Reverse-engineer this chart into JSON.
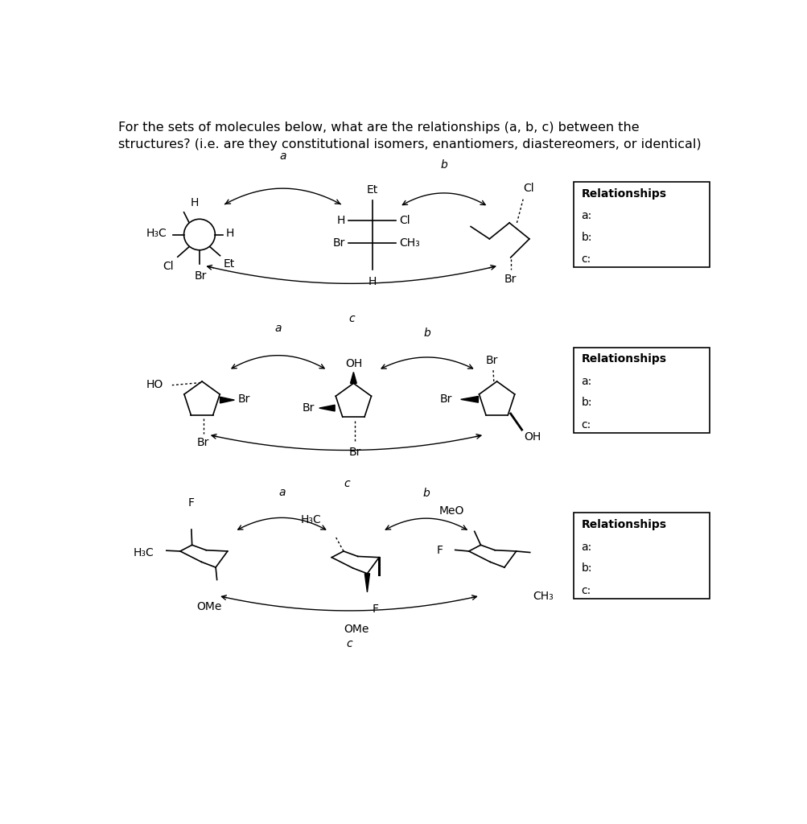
{
  "title_line1": "For the sets of molecules below, what are the relationships (a, b, c) between the",
  "title_line2": "structures? (i.e. are they constitutional isomers, enantiomers, diastereomers, or identical)",
  "background_color": "#ffffff",
  "text_color": "#000000",
  "font_size_title": 11.5,
  "font_size_chem": 10,
  "relationships_label": "Relationships",
  "rel_a": "a:",
  "rel_b": "b:",
  "rel_c": "c:"
}
